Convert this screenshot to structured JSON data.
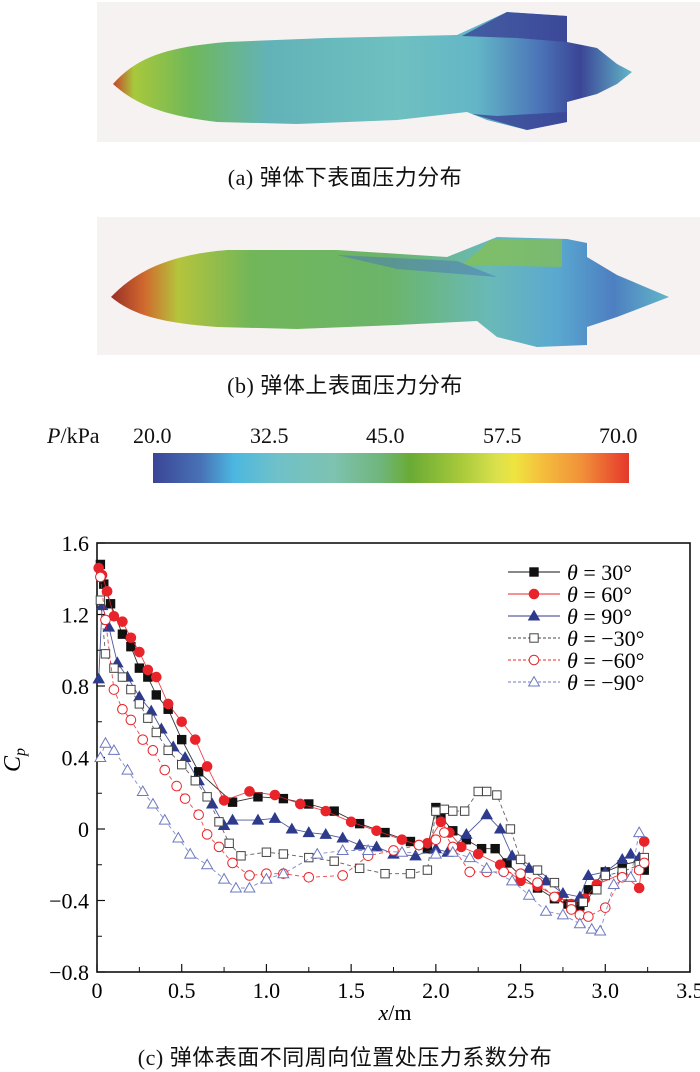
{
  "figure": {
    "panel_a": {
      "caption": "(a) 弹体下表面压力分布",
      "description": "Pressure contour on lower surface of projectile body"
    },
    "panel_b": {
      "caption": "(b) 弹体上表面压力分布",
      "description": "Pressure contour on upper surface of projectile body"
    },
    "colorbar": {
      "label_var": "P",
      "label_unit": "/kPa",
      "ticks": [
        "20.0",
        "32.5",
        "45.0",
        "57.5",
        "70.0"
      ],
      "range": [
        20.0,
        70.0
      ],
      "colors": {
        "low": "#3b4596",
        "mid": "#6aab35",
        "high": "#e33a2b"
      }
    },
    "panel_c": {
      "caption": "(c) 弹体表面不同周向位置处压力系数分布"
    }
  },
  "chart_data": {
    "type": "line",
    "title": "",
    "xlabel": "x/m",
    "ylabel": "Cp",
    "xlim": [
      0,
      3.5
    ],
    "ylim": [
      -0.8,
      1.6
    ],
    "xticks": [
      "0",
      "0.5",
      "1.0",
      "1.5",
      "2.0",
      "2.5",
      "3.0",
      "3.5"
    ],
    "xtick_values": [
      0,
      0.5,
      1.0,
      1.5,
      2.0,
      2.5,
      3.0,
      3.5
    ],
    "yticks": [
      "−0.8",
      "−0.4",
      "0",
      "0.4",
      "0.8",
      "1.2",
      "1.6"
    ],
    "ytick_values": [
      -0.8,
      -0.4,
      0,
      0.4,
      0.8,
      1.2,
      1.6
    ],
    "grid": false,
    "legend_position": "top-right",
    "series": [
      {
        "name": "θ = 30°",
        "color": "#111111",
        "marker": "square-filled",
        "dash": "solid",
        "x": [
          0.02,
          0.04,
          0.08,
          0.15,
          0.2,
          0.25,
          0.3,
          0.35,
          0.42,
          0.5,
          0.6,
          0.8,
          0.95,
          1.1,
          1.25,
          1.4,
          1.55,
          1.7,
          1.85,
          1.95,
          2.0,
          2.03,
          2.1,
          2.18,
          2.27,
          2.35,
          2.42,
          2.5,
          2.6,
          2.7,
          2.78,
          2.85,
          2.9,
          3.0,
          3.1,
          3.2,
          3.23
        ],
        "y": [
          1.48,
          1.37,
          1.26,
          1.09,
          1.02,
          0.9,
          0.85,
          0.75,
          0.67,
          0.5,
          0.32,
          0.15,
          0.18,
          0.17,
          0.14,
          0.1,
          0.03,
          -0.02,
          -0.07,
          -0.11,
          0.12,
          0.07,
          -0.01,
          -0.06,
          -0.11,
          -0.11,
          -0.19,
          -0.26,
          -0.33,
          -0.39,
          -0.42,
          -0.43,
          -0.34,
          -0.24,
          -0.2,
          -0.18,
          -0.23
        ]
      },
      {
        "name": "θ = 60°",
        "color": "#e8242a",
        "marker": "circle-filled",
        "dash": "solid",
        "x": [
          0.01,
          0.03,
          0.06,
          0.1,
          0.15,
          0.2,
          0.25,
          0.3,
          0.35,
          0.42,
          0.5,
          0.58,
          0.65,
          0.75,
          0.9,
          1.05,
          1.2,
          1.35,
          1.5,
          1.65,
          1.8,
          1.9,
          1.95,
          2.03,
          2.08,
          2.15,
          2.25,
          2.38,
          2.5,
          2.6,
          2.72,
          2.8,
          2.88,
          2.95,
          3.1,
          3.2,
          3.23
        ],
        "y": [
          1.46,
          1.42,
          1.33,
          1.19,
          1.16,
          1.07,
          0.99,
          0.89,
          0.85,
          0.7,
          0.6,
          0.5,
          0.35,
          0.16,
          0.21,
          0.19,
          0.14,
          0.1,
          0.04,
          -0.01,
          -0.06,
          -0.09,
          -0.08,
          0.04,
          -0.02,
          -0.1,
          -0.14,
          -0.2,
          -0.29,
          -0.32,
          -0.38,
          -0.42,
          -0.39,
          -0.31,
          -0.25,
          -0.33,
          -0.07
        ]
      },
      {
        "name": "θ = 90°",
        "color": "#2e3a8c",
        "marker": "triangle-filled",
        "dash": "solid",
        "x": [
          0.01,
          0.03,
          0.07,
          0.12,
          0.18,
          0.25,
          0.32,
          0.38,
          0.45,
          0.52,
          0.6,
          0.68,
          0.75,
          0.8,
          0.95,
          1.05,
          1.15,
          1.25,
          1.35,
          1.45,
          1.55,
          1.65,
          1.75,
          1.88,
          2.0,
          2.07,
          2.18,
          2.3,
          2.38,
          2.45,
          2.55,
          2.65,
          2.75,
          2.85,
          2.9,
          3.0,
          3.1,
          3.15,
          3.2
        ],
        "y": [
          0.84,
          1.25,
          1.13,
          0.93,
          0.85,
          0.74,
          0.66,
          0.56,
          0.46,
          0.4,
          0.27,
          0.14,
          0.02,
          0.05,
          0.05,
          0.06,
          0.0,
          -0.02,
          -0.03,
          -0.05,
          -0.09,
          -0.1,
          -0.14,
          -0.15,
          -0.11,
          -0.13,
          -0.03,
          0.08,
          0.0,
          -0.15,
          -0.22,
          -0.29,
          -0.36,
          -0.38,
          -0.26,
          -0.24,
          -0.17,
          -0.14,
          -0.16
        ]
      },
      {
        "name": "θ = −30°",
        "color": "#444444",
        "marker": "square-open",
        "dash": "dashed",
        "x": [
          0.02,
          0.05,
          0.1,
          0.15,
          0.2,
          0.25,
          0.3,
          0.35,
          0.42,
          0.5,
          0.58,
          0.65,
          0.72,
          0.78,
          0.85,
          1.0,
          1.1,
          1.25,
          1.4,
          1.55,
          1.7,
          1.85,
          1.95,
          2.0,
          2.05,
          2.1,
          2.17,
          2.25,
          2.3,
          2.36,
          2.44,
          2.5,
          2.6,
          2.7,
          2.8,
          2.87,
          2.95,
          3.0,
          3.1,
          3.2,
          3.23
        ],
        "y": [
          1.28,
          0.98,
          0.9,
          0.85,
          0.78,
          0.7,
          0.62,
          0.54,
          0.44,
          0.36,
          0.27,
          0.18,
          0.04,
          -0.08,
          -0.15,
          -0.13,
          -0.14,
          -0.16,
          -0.18,
          -0.22,
          -0.25,
          -0.25,
          -0.23,
          0.1,
          0.11,
          0.1,
          0.1,
          0.21,
          0.21,
          0.19,
          0.0,
          -0.17,
          -0.23,
          -0.3,
          -0.43,
          -0.41,
          -0.34,
          -0.26,
          -0.24,
          -0.2,
          -0.16
        ]
      },
      {
        "name": "θ = −60°",
        "color": "#e8242a",
        "marker": "circle-open",
        "dash": "dashed",
        "x": [
          0.02,
          0.05,
          0.1,
          0.15,
          0.2,
          0.27,
          0.33,
          0.4,
          0.47,
          0.52,
          0.6,
          0.65,
          0.72,
          0.8,
          0.9,
          1.0,
          1.1,
          1.25,
          1.45,
          1.6,
          1.75,
          1.9,
          2.0,
          2.05,
          2.1,
          2.2,
          2.3,
          2.4,
          2.5,
          2.6,
          2.7,
          2.8,
          2.85,
          2.9,
          3.0,
          3.1,
          3.2,
          3.23
        ],
        "y": [
          1.41,
          1.17,
          0.78,
          0.67,
          0.61,
          0.5,
          0.44,
          0.33,
          0.24,
          0.17,
          0.08,
          -0.03,
          -0.1,
          -0.19,
          -0.26,
          -0.25,
          -0.25,
          -0.27,
          -0.26,
          -0.15,
          -0.12,
          -0.09,
          -0.06,
          -0.02,
          -0.1,
          -0.24,
          -0.24,
          -0.24,
          -0.25,
          -0.3,
          -0.38,
          -0.45,
          -0.48,
          -0.49,
          -0.44,
          -0.27,
          -0.23,
          -0.19
        ]
      },
      {
        "name": "θ = −90°",
        "color": "#6c78c0",
        "marker": "triangle-open",
        "dash": "dashed",
        "x": [
          0.02,
          0.05,
          0.1,
          0.18,
          0.27,
          0.33,
          0.4,
          0.48,
          0.55,
          0.65,
          0.75,
          0.82,
          0.9,
          1.0,
          1.1,
          1.3,
          1.45,
          1.6,
          1.8,
          2.0,
          2.1,
          2.2,
          2.3,
          2.45,
          2.55,
          2.65,
          2.75,
          2.85,
          2.92,
          2.97,
          3.05,
          3.15,
          3.2
        ],
        "y": [
          0.4,
          0.48,
          0.44,
          0.33,
          0.21,
          0.14,
          0.05,
          -0.05,
          -0.14,
          -0.2,
          -0.28,
          -0.33,
          -0.33,
          -0.28,
          -0.25,
          -0.14,
          -0.12,
          -0.12,
          -0.13,
          -0.14,
          -0.13,
          -0.16,
          -0.22,
          -0.29,
          -0.37,
          -0.46,
          -0.48,
          -0.53,
          -0.56,
          -0.57,
          -0.31,
          -0.27,
          -0.02
        ]
      }
    ]
  }
}
